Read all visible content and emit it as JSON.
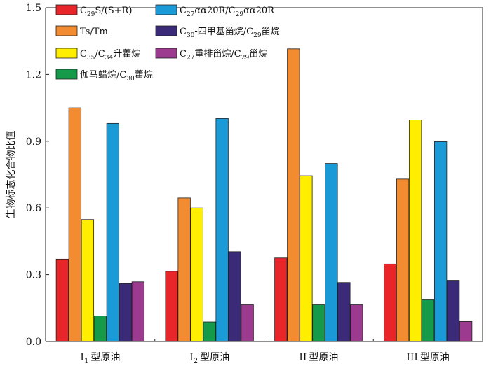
{
  "chart_data": {
    "type": "bar",
    "title": "",
    "xlabel": "",
    "ylabel": "生物标志化合物比值",
    "ylim": [
      0,
      1.5
    ],
    "yticks": [
      "0.0",
      "0.3",
      "0.6",
      "0.9",
      "1.2",
      "1.5"
    ],
    "ytick_values": [
      0,
      0.3,
      0.6,
      0.9,
      1.2,
      1.5
    ],
    "categories": [
      {
        "main": "I",
        "sub": "1",
        "suffix": "型原油"
      },
      {
        "main": "I",
        "sub": "2",
        "suffix": "型原油"
      },
      {
        "main": "II",
        "sub": "",
        "suffix": "型原油"
      },
      {
        "main": "III",
        "sub": "",
        "suffix": "型原油"
      }
    ],
    "legend_position": "top-left",
    "grid": false,
    "series": [
      {
        "name": "C29S/(S+R)",
        "label_parts": [
          [
            "C",
            ""
          ],
          [
            "29",
            "sub"
          ],
          [
            "S/(S+R)",
            ""
          ]
        ],
        "color": "#e8262a",
        "values": [
          0.37,
          0.315,
          0.375,
          0.348
        ]
      },
      {
        "name": "Ts/Tm",
        "label_parts": [
          [
            "Ts/Tm",
            ""
          ]
        ],
        "color": "#f38b30",
        "values": [
          1.05,
          0.645,
          1.315,
          0.73
        ]
      },
      {
        "name": "C35/C34升藿烷",
        "label_parts": [
          [
            "C",
            ""
          ],
          [
            "35",
            "sub"
          ],
          [
            "/C",
            ""
          ],
          [
            "34",
            "sub"
          ],
          [
            "升藿烷",
            ""
          ]
        ],
        "color": "#ffee00",
        "values": [
          0.548,
          0.6,
          0.745,
          0.995
        ]
      },
      {
        "name": "伽马蜡烷/C30藿烷",
        "label_parts": [
          [
            "伽马蜡烷/C",
            ""
          ],
          [
            "30",
            "sub"
          ],
          [
            "藿烷",
            ""
          ]
        ],
        "color": "#149a48",
        "values": [
          0.115,
          0.088,
          0.165,
          0.187
        ]
      },
      {
        "name": "C27αα20R/C29αα20R",
        "label_parts": [
          [
            "C",
            ""
          ],
          [
            "27",
            "sub"
          ],
          [
            "αα20R/C",
            ""
          ],
          [
            "29",
            "sub"
          ],
          [
            "αα20R",
            ""
          ]
        ],
        "color": "#1a9ad6",
        "values": [
          0.98,
          1.002,
          0.8,
          0.898
        ]
      },
      {
        "name": "C30-四甲基甾烷/C29甾烷",
        "label_parts": [
          [
            "C",
            ""
          ],
          [
            "30",
            "sub"
          ],
          [
            "-四甲基甾烷/C",
            ""
          ],
          [
            "29",
            "sub"
          ],
          [
            "甾烷",
            ""
          ]
        ],
        "color": "#3a2a78",
        "values": [
          0.26,
          0.403,
          0.265,
          0.275
        ]
      },
      {
        "name": "C27重排甾烷/C29甾烷",
        "label_parts": [
          [
            "C",
            ""
          ],
          [
            "27",
            "sub"
          ],
          [
            "重排甾烷/C",
            ""
          ],
          [
            "29",
            "sub"
          ],
          [
            "甾烷",
            ""
          ]
        ],
        "color": "#9b3a8e",
        "values": [
          0.268,
          0.165,
          0.165,
          0.09
        ]
      }
    ]
  }
}
